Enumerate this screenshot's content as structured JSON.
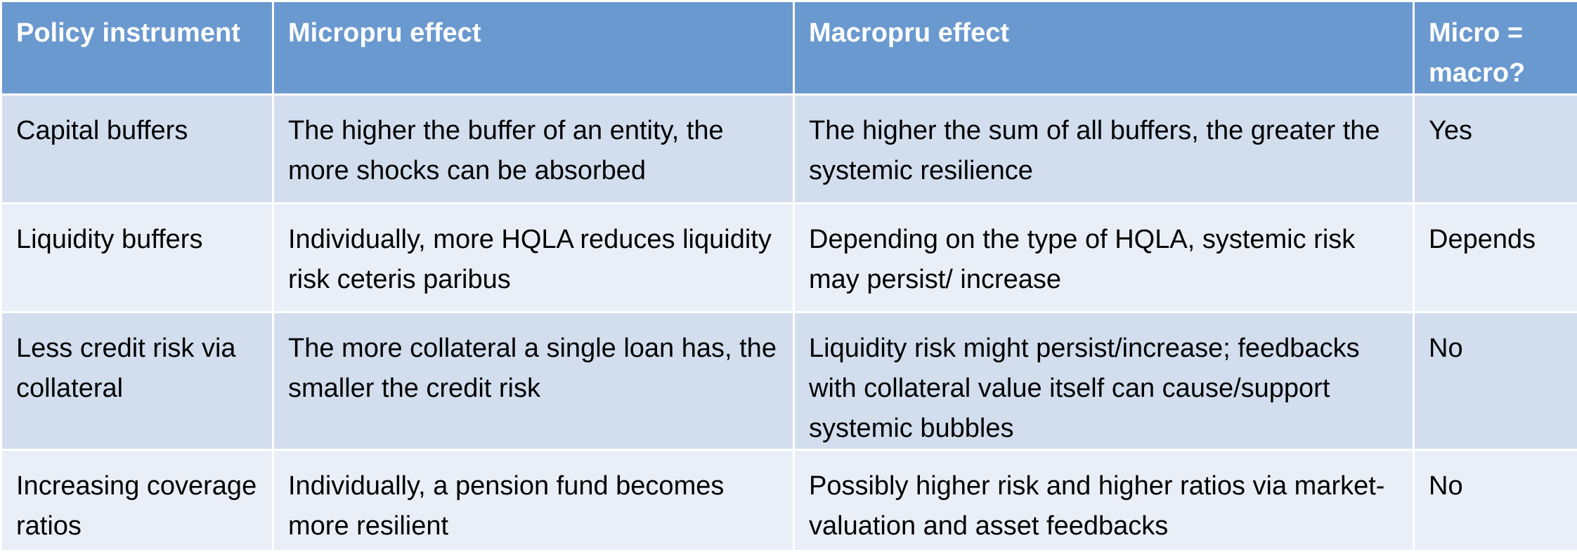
{
  "table": {
    "headers": [
      "Policy instrument",
      "Micropru effect",
      "Macropru effect",
      "Micro = macro?"
    ],
    "rows": [
      [
        "Capital buffers",
        "The higher the buffer of an entity, the more shocks can be absorbed",
        "The higher the sum of all buffers, the greater the systemic resilience",
        "Yes"
      ],
      [
        "Liquidity buffers",
        "Individually, more HQLA reduces liquidity risk ceteris paribus",
        "Depending on the type of HQLA, systemic risk may persist/ increase",
        "Depends"
      ],
      [
        "Less credit risk via collateral",
        "The more collateral a single loan has, the smaller the credit risk",
        "Liquidity risk might persist/increase; feedbacks with collateral value itself can cause/support systemic bubbles",
        "No"
      ],
      [
        "Increasing coverage ratios",
        "Individually, a pension fund becomes more resilient",
        "Possibly higher risk and higher ratios via market-valuation and asset feedbacks",
        "No"
      ]
    ]
  },
  "colors": {
    "header_bg": "#6a99cf",
    "row_odd_bg": "#d2deee",
    "row_even_bg": "#eaeff7",
    "header_text": "#ffffff",
    "body_text": "#000000"
  }
}
